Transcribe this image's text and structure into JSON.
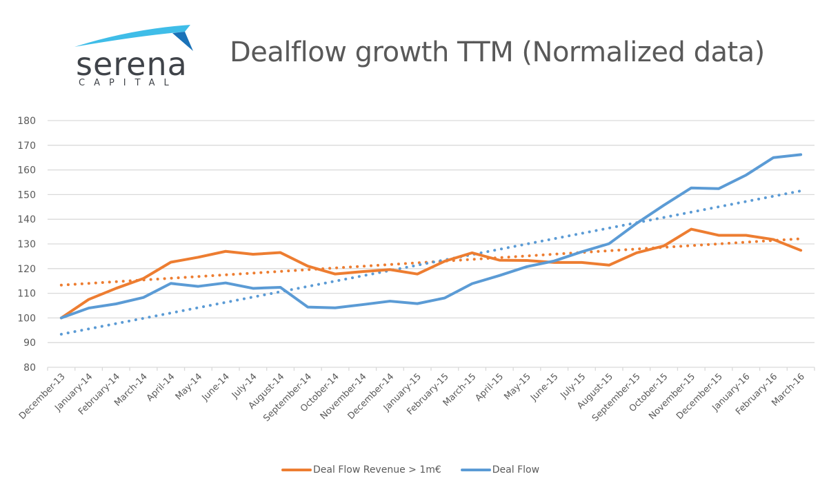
{
  "logo": {
    "word": "serena",
    "subtitle": "CAPITAL",
    "colors": {
      "swoosh_light": "#3fbde8",
      "swoosh_dark": "#1a72b8",
      "text": "#3f4349"
    }
  },
  "chart_data": {
    "type": "line",
    "title": "Dealflow growth TTM (Normalized data)",
    "xlabel": "",
    "ylabel": "",
    "ylim": [
      80,
      180
    ],
    "yticks": [
      80,
      90,
      100,
      110,
      120,
      130,
      140,
      150,
      160,
      170,
      180
    ],
    "grid": true,
    "legend_position": "bottom",
    "categories": [
      "December-13",
      "January-14",
      "February-14",
      "March-14",
      "April-14",
      "May-14",
      "June-14",
      "July-14",
      "August-14",
      "September-14",
      "October-14",
      "November-14",
      "December-14",
      "January-15",
      "February-15",
      "March-15",
      "April-15",
      "May-15",
      "June-15",
      "July-15",
      "August-15",
      "September-15",
      "October-15",
      "November-15",
      "December-15",
      "January-16",
      "February-16",
      "March-16"
    ],
    "series": [
      {
        "name": "Deal Flow Revenue > 1m€",
        "color": "#ed7d31",
        "values": [
          100,
          107.5,
          112,
          116,
          122.6,
          124.6,
          127,
          125.8,
          126.5,
          121,
          117.8,
          118.8,
          119.6,
          117.8,
          123,
          126.4,
          123.4,
          123.3,
          122.5,
          122.5,
          121.4,
          126.4,
          129.2,
          136,
          133.5,
          133.5,
          131.8,
          127.4
        ],
        "trendline": {
          "type": "linear",
          "start": 113.3,
          "end": 132.1
        }
      },
      {
        "name": "Deal Flow",
        "color": "#5b9bd5",
        "values": [
          100,
          104,
          105.7,
          108.3,
          114,
          112.8,
          114.2,
          112,
          112.4,
          104.4,
          104.1,
          105.4,
          106.8,
          105.8,
          108.1,
          113.9,
          117.2,
          120.8,
          123.1,
          126.8,
          130.1,
          138.3,
          145.7,
          152.7,
          152.4,
          157.9,
          165,
          166.2
        ],
        "trendline": {
          "type": "linear",
          "start": 93.4,
          "end": 151.5
        }
      }
    ]
  }
}
